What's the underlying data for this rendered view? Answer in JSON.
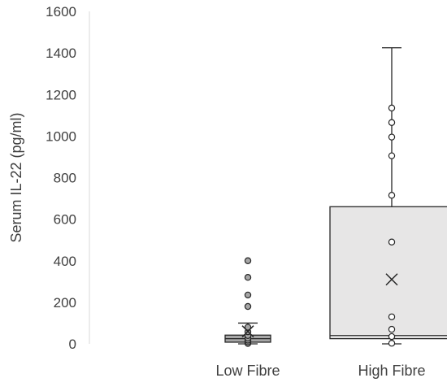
{
  "chart_data": {
    "type": "box",
    "title": "",
    "xlabel": "",
    "ylabel": "Serum IL-22 (pg/ml)",
    "ylim": [
      0,
      1600
    ],
    "yticks": [
      0,
      200,
      400,
      600,
      800,
      1000,
      1200,
      1400,
      1600
    ],
    "grid": false,
    "legend": "none",
    "categories": [
      "Low Fibre",
      "High Fibre"
    ],
    "series": [
      {
        "category": "Low Fibre",
        "whisker_low": 0,
        "q1": 8,
        "median": 25,
        "q3": 42,
        "whisker_high": 100,
        "mean": 60,
        "points": [
          2,
          10,
          18,
          28,
          40,
          58,
          80,
          180,
          235,
          320,
          400
        ],
        "box_fill": "#a6a6a6"
      },
      {
        "category": "High Fibre",
        "whisker_low": 0,
        "q1": 25,
        "median": 40,
        "q3": 660,
        "whisker_high": 1425,
        "mean": 310,
        "points": [
          3,
          35,
          70,
          130,
          490,
          715,
          905,
          995,
          1065,
          1135
        ],
        "box_fill": "#e7e6e6"
      }
    ],
    "colors": {
      "box_stroke": "#262626",
      "outlier_fill_low": "#a6a6a6",
      "outlier_fill_high": "#ffffff",
      "axis_line": "#d9d9d9",
      "text": "#404040"
    }
  }
}
